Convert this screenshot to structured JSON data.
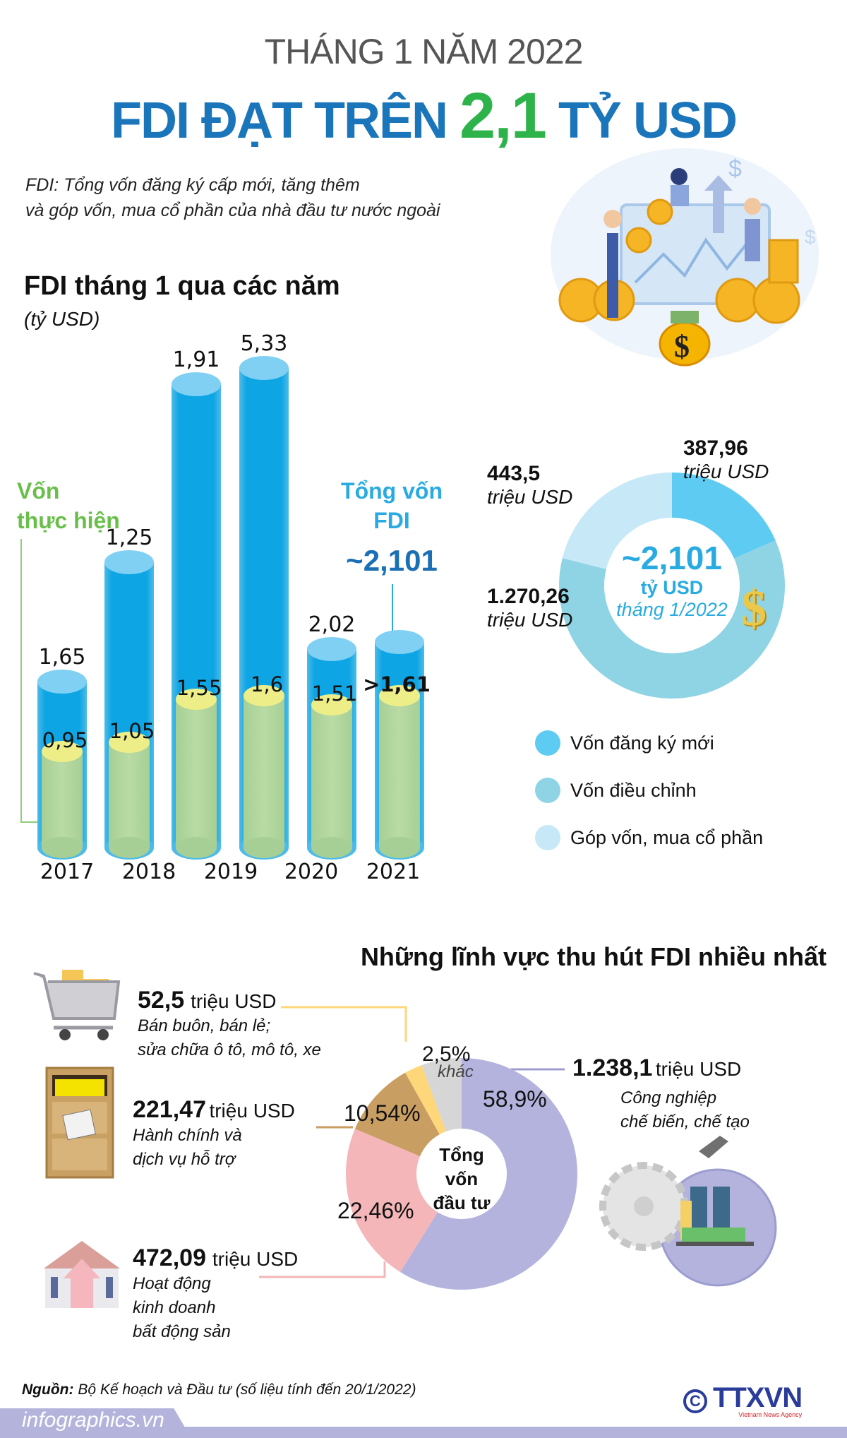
{
  "header": {
    "subtitle": "THÁNG 1 NĂM 2022",
    "title_part1": "FDI ĐẠT TRÊN",
    "title_highlight": "2,1",
    "title_part2": "TỶ USD",
    "note_line1": "FDI: Tổng vốn đăng ký cấp mới, tăng thêm",
    "note_line2": "và góp vốn, mua cổ phần của nhà đầu tư nước ngoài"
  },
  "colors": {
    "title_blue": "#1a75bb",
    "highlight_green": "#2db34a",
    "bar_blue": "#29abe2",
    "realized_green": "#b4d89c",
    "realized_top": "#eeee88"
  },
  "chart_data": [
    {
      "type": "bar",
      "title": "FDI tháng 1 qua các năm",
      "unit": "(tỷ USD)",
      "year_labels": [
        "2017",
        "2018",
        "2019",
        "2020",
        "2021"
      ],
      "series": [
        {
          "name": "Tổng vốn FDI",
          "values": [
            1.65,
            1.25,
            1.91,
            5.33,
            2.02,
            2.101
          ],
          "labels": [
            "1,65",
            "1,25",
            "1,91",
            "5,33",
            "2,02",
            ""
          ]
        },
        {
          "name": "Vốn thực hiện",
          "values": [
            0.95,
            1.05,
            1.55,
            1.6,
            1.51,
            1.61
          ],
          "labels": [
            "0,95",
            "1,05",
            "1,55",
            "1,6",
            "1,51",
            ">1,61"
          ]
        }
      ],
      "annotations": {
        "realized_label_line1": "Vốn",
        "realized_label_line2": "thực hiện",
        "total_label_line1": "Tổng vốn",
        "total_label_line2": "FDI",
        "total_value": "~2,101"
      }
    },
    {
      "type": "pie",
      "center_value": "~2,101",
      "center_unit": "tỷ USD",
      "center_period": "tháng 1/2022",
      "slices": [
        {
          "name": "Vốn đăng ký mới",
          "value": 387.96,
          "label": "387,96",
          "unit": "triệu USD",
          "color": "#5ecbf2"
        },
        {
          "name": "Vốn điều chỉnh",
          "value": 1270.26,
          "label": "1.270,26",
          "unit": "triệu USD",
          "color": "#8fd4e4"
        },
        {
          "name": "Góp vốn, mua cổ phần",
          "value": 443.5,
          "label": "443,5",
          "unit": "triệu USD",
          "color": "#c6e8f7"
        }
      ]
    },
    {
      "type": "pie",
      "title": "Những lĩnh vực thu hút FDI nhiều nhất",
      "center_label_line1": "Tổng",
      "center_label_line2": "vốn",
      "center_label_line3": "đầu tư",
      "slices": [
        {
          "name": "Công nghiệp chế biến, chế tạo",
          "percent": 58.9,
          "label": "58,9%",
          "value": "1.238,1",
          "unit": "triệu USD",
          "desc1": "Công nghiệp",
          "desc2": "chế biến, chế tạo",
          "color": "#b3b3de"
        },
        {
          "name": "Hoạt động kinh doanh bất động sản",
          "percent": 22.46,
          "label": "22,46%",
          "value": "472,09",
          "unit": "triệu USD",
          "desc1": "Hoạt động",
          "desc2": "kinh doanh",
          "desc3": "bất động sản",
          "color": "#f4b6b8"
        },
        {
          "name": "Hành chính và dịch vụ hỗ trợ",
          "percent": 10.54,
          "label": "10,54%",
          "value": "221,47",
          "unit": "triệu USD",
          "desc1": "Hành chính và",
          "desc2": "dịch vụ hỗ trợ",
          "color": "#c99e62"
        },
        {
          "name": "Bán buôn, bán lẻ; sửa chữa ô tô, mô tô, xe",
          "percent": 2.5,
          "label": "2,5%",
          "value": "52,5",
          "unit": "triệu USD",
          "desc1": "Bán buôn, bán lẻ;",
          "desc2": "sửa chữa ô tô, mô tô, xe",
          "color": "#fdd77a"
        },
        {
          "name": "khác",
          "percent": 5.6,
          "label": "khác",
          "color": "#d6d6d6"
        }
      ]
    }
  ],
  "footer": {
    "source_label": "Nguồn:",
    "source_text": "Bộ Kế hoạch và Đầu tư (số liệu tính đến 20/1/2022)",
    "site": "infographics.vn",
    "logo_text": "TTXVN",
    "logo_sub": "Vietnam News Agency"
  }
}
